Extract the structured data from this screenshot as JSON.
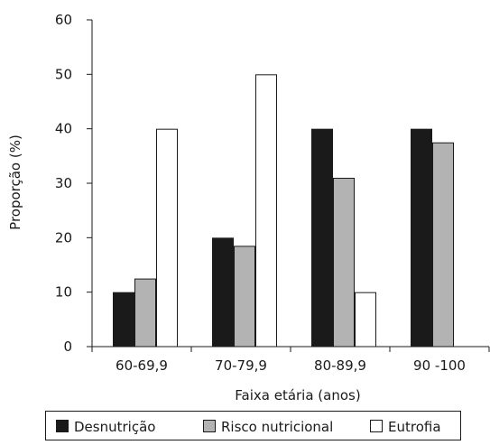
{
  "chart_data": {
    "type": "bar",
    "title": "",
    "xlabel": "Faixa etária (anos)",
    "ylabel": "Proporção (%)",
    "ylim": [
      0,
      60
    ],
    "yticks": [
      0,
      10,
      20,
      30,
      40,
      50,
      60
    ],
    "categories": [
      "60-69,9",
      "70-79,9",
      "80-89,9",
      "90 -100"
    ],
    "series": [
      {
        "name": "Desnutrição",
        "color": "#1a1a1a",
        "values": [
          10,
          20,
          40,
          40
        ]
      },
      {
        "name": "Risco nutricional",
        "color": "#b3b3b3",
        "values": [
          12.5,
          18.5,
          31,
          37.5
        ]
      },
      {
        "name": "Eutrofia",
        "color": "#ffffff",
        "values": [
          40,
          50,
          10,
          0
        ]
      }
    ],
    "grid": false,
    "legend_position": "bottom"
  }
}
